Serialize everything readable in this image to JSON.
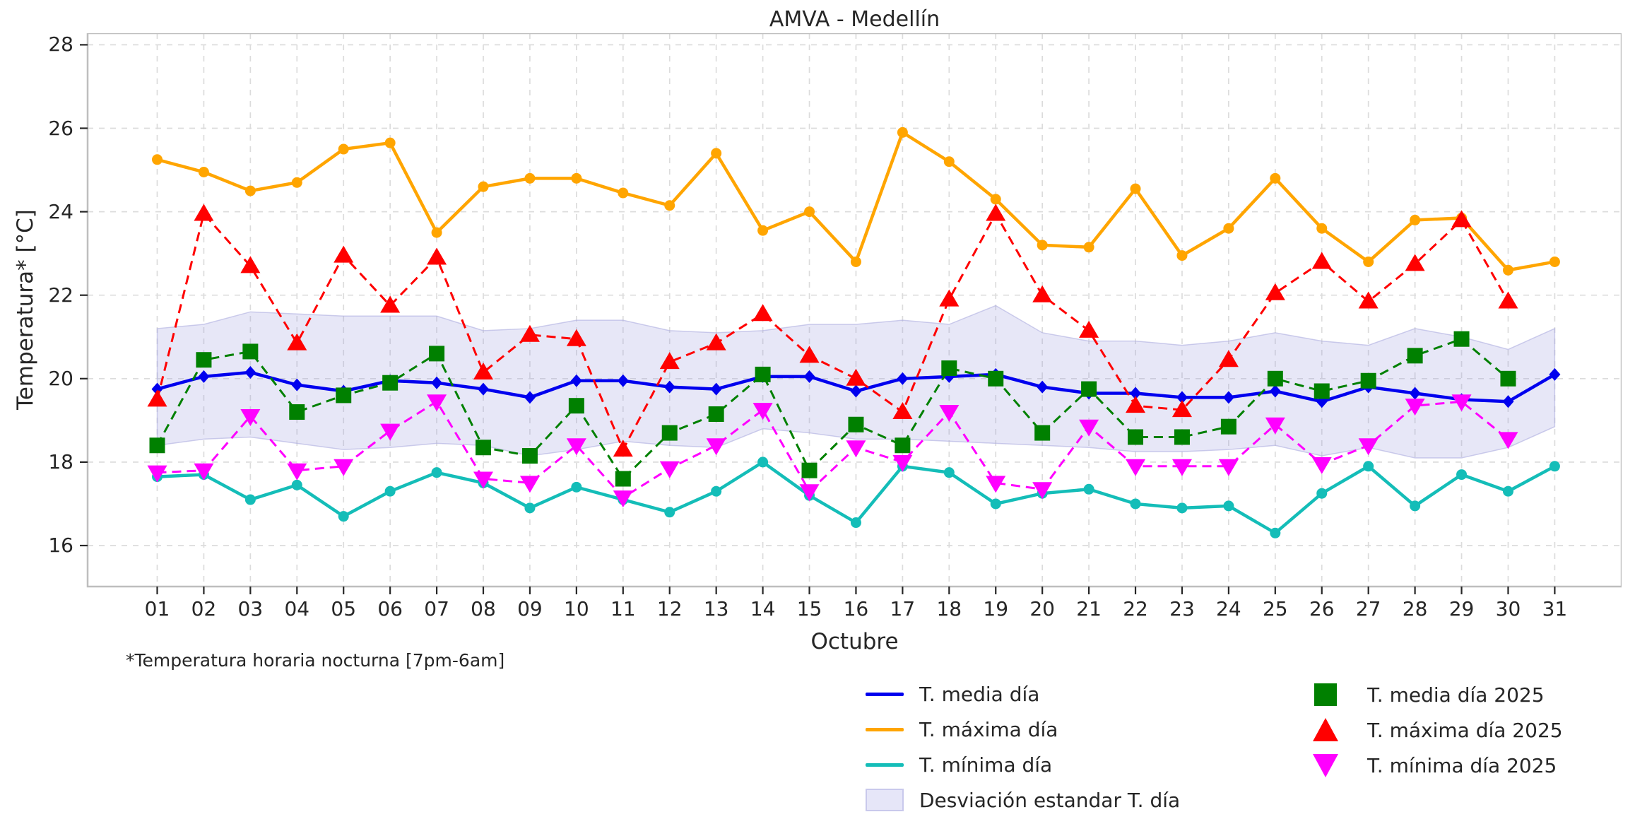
{
  "title": "AMVA - Medellín",
  "footnote": "*Temperatura horaria nocturna [7pm-6am]",
  "legend_left": [
    {
      "label": "T. media día",
      "type": "line",
      "color": "#0000EE"
    },
    {
      "label": "T. máxima día",
      "type": "line",
      "color": "#FFA500"
    },
    {
      "label": "T. mínima día",
      "type": "line",
      "color": "#14BDB8"
    },
    {
      "label": "Desviación estandar T. día",
      "type": "patch",
      "color": "#E6E6F8"
    }
  ],
  "legend_right": [
    {
      "label": "T. media día 2025",
      "type": "square",
      "color": "#008000"
    },
    {
      "label": "T. máxima día 2025",
      "type": "triangle-up",
      "color": "#FF0000"
    },
    {
      "label": "T. mínima día 2025",
      "type": "triangle-down",
      "color": "#FF00FF"
    }
  ],
  "colors": {
    "grid": "#DCDCDC",
    "spine": "#BEBEBE",
    "text": "#262626",
    "band_fill": "#9999DD",
    "band_edge": "#AEAEE0"
  },
  "chart_data": {
    "type": "line",
    "title": "AMVA - Medellín",
    "xlabel": "Octubre",
    "ylabel": "Temperatura* [°C]",
    "x_labels": [
      "01",
      "02",
      "03",
      "04",
      "05",
      "06",
      "07",
      "08",
      "09",
      "10",
      "11",
      "12",
      "13",
      "14",
      "15",
      "16",
      "17",
      "18",
      "19",
      "20",
      "21",
      "22",
      "23",
      "24",
      "25",
      "26",
      "27",
      "28",
      "29",
      "30",
      "31"
    ],
    "yticks": [
      16,
      18,
      20,
      22,
      24,
      26,
      28
    ],
    "ylim": [
      15.0,
      28.25
    ],
    "grid": true,
    "legend_position": "below",
    "series": [
      {
        "name": "T. media día",
        "color": "#0000EE",
        "style": "solid",
        "marker": "diamond",
        "values": [
          19.75,
          20.05,
          20.15,
          19.85,
          19.7,
          19.95,
          19.9,
          19.75,
          19.55,
          19.95,
          19.95,
          19.8,
          19.75,
          20.05,
          20.05,
          19.7,
          20.0,
          20.05,
          20.1,
          19.8,
          19.65,
          19.65,
          19.55,
          19.55,
          19.7,
          19.45,
          19.8,
          19.65,
          19.5,
          19.45,
          20.1
        ]
      },
      {
        "name": "T. máxima día",
        "color": "#FFA500",
        "style": "solid",
        "marker": "circle",
        "values": [
          25.25,
          24.95,
          24.5,
          24.7,
          25.5,
          25.65,
          23.5,
          24.6,
          24.8,
          24.8,
          24.45,
          24.15,
          25.4,
          23.55,
          24.0,
          22.8,
          25.9,
          25.2,
          24.3,
          23.2,
          23.15,
          24.55,
          22.95,
          23.6,
          24.8,
          23.6,
          22.8,
          23.8,
          23.85,
          22.6,
          22.8
        ]
      },
      {
        "name": "T. mínima día",
        "color": "#14BDB8",
        "style": "solid",
        "marker": "circle",
        "values": [
          17.65,
          17.7,
          17.1,
          17.45,
          16.7,
          17.3,
          17.75,
          17.5,
          16.9,
          17.4,
          17.1,
          16.8,
          17.3,
          18.0,
          17.2,
          16.55,
          17.9,
          17.75,
          17.0,
          17.25,
          17.35,
          17.0,
          16.9,
          16.95,
          16.3,
          17.25,
          17.9,
          16.95,
          17.7,
          17.3,
          17.9
        ]
      },
      {
        "name": "T. media día 2025",
        "color": "#008000",
        "style": "dashed",
        "marker": "square",
        "values": [
          18.4,
          20.45,
          20.65,
          19.2,
          19.6,
          19.9,
          20.6,
          18.35,
          18.15,
          19.35,
          17.6,
          18.7,
          19.15,
          20.1,
          17.8,
          18.9,
          18.4,
          20.25,
          20.0,
          18.7,
          19.75,
          18.6,
          18.6,
          18.85,
          20.0,
          19.7,
          19.95,
          20.55,
          20.95,
          20.0
        ]
      },
      {
        "name": "T. máxima día 2025",
        "color": "#FF0000",
        "style": "dashed",
        "marker": "triangle-up",
        "values": [
          19.5,
          23.95,
          22.7,
          20.85,
          22.95,
          21.75,
          22.9,
          20.15,
          21.05,
          20.95,
          18.3,
          20.4,
          20.85,
          21.55,
          20.55,
          20.0,
          19.2,
          21.9,
          23.95,
          22.0,
          21.15,
          19.35,
          19.25,
          20.45,
          22.05,
          22.8,
          21.85,
          22.75,
          23.8,
          21.85
        ]
      },
      {
        "name": "T. mínima día 2025",
        "color": "#FF00FF",
        "style": "dashed",
        "marker": "triangle-down",
        "values": [
          17.75,
          17.8,
          19.1,
          17.8,
          17.9,
          18.75,
          19.45,
          17.6,
          17.5,
          18.4,
          17.15,
          17.85,
          18.4,
          19.25,
          17.3,
          18.35,
          18.0,
          19.2,
          17.5,
          17.35,
          18.85,
          17.9,
          17.9,
          17.9,
          18.9,
          17.95,
          18.4,
          19.35,
          19.45,
          18.55
        ]
      }
    ],
    "band": {
      "name": "Desviación estandar T. día",
      "upper": [
        21.2,
        21.3,
        21.6,
        21.55,
        21.5,
        21.5,
        21.5,
        21.15,
        21.2,
        21.4,
        21.4,
        21.15,
        21.1,
        21.15,
        21.3,
        21.3,
        21.4,
        21.3,
        21.75,
        21.1,
        20.9,
        20.9,
        20.8,
        20.9,
        21.1,
        20.9,
        20.8,
        21.2,
        21.0,
        20.7,
        21.2
      ],
      "lower": [
        18.4,
        18.55,
        18.6,
        18.45,
        18.3,
        18.35,
        18.45,
        18.4,
        18.15,
        18.3,
        18.5,
        18.4,
        18.35,
        18.8,
        18.7,
        18.55,
        18.55,
        18.5,
        18.45,
        18.4,
        18.35,
        18.25,
        18.25,
        18.3,
        18.4,
        18.15,
        18.35,
        18.1,
        18.1,
        18.35,
        18.85
      ]
    }
  }
}
